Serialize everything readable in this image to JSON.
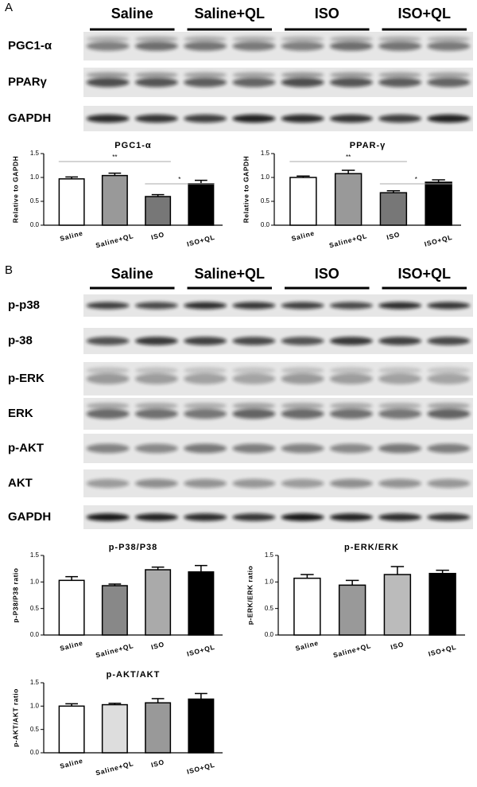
{
  "panel_a": {
    "label": "A",
    "groups": [
      "Saline",
      "Saline+QL",
      "ISO",
      "ISO+QL"
    ],
    "blots": [
      "PGC1-α",
      "PPARγ",
      "GAPDH"
    ]
  },
  "panel_b": {
    "label": "B",
    "groups": [
      "Saline",
      "Saline+QL",
      "ISO",
      "ISO+QL"
    ],
    "blots": [
      "p-p38",
      "p-38",
      "p-ERK",
      "ERK",
      "p-AKT",
      "AKT",
      "GAPDH"
    ]
  },
  "chart_data": [
    {
      "type": "bar",
      "title": "PGC1-α",
      "ylabel": "Relative to GAPDH",
      "categories": [
        "Saline",
        "Saline+QL",
        "ISO",
        "ISO+QL"
      ],
      "values": [
        0.97,
        1.04,
        0.6,
        0.87
      ],
      "errors": [
        0.04,
        0.05,
        0.04,
        0.07
      ],
      "colors": [
        "#ffffff",
        "#999999",
        "#777777",
        "#000000"
      ],
      "ylim": [
        0,
        1.5
      ],
      "yticks": [
        {
          "value": 0,
          "label": "0.0"
        },
        {
          "value": 0.5,
          "label": "0.5"
        },
        {
          "value": 1,
          "label": "1.0"
        },
        {
          "value": 1.5,
          "label": "1.5"
        }
      ],
      "significance": [
        {
          "label": "**",
          "groups": [
            0,
            2
          ]
        },
        {
          "label": "*",
          "groups": [
            2,
            3
          ]
        }
      ]
    },
    {
      "type": "bar",
      "title": "PPAR-γ",
      "ylabel": "Relative to GAPDH",
      "categories": [
        "Saline",
        "Saline+QL",
        "ISO",
        "ISO+QL"
      ],
      "values": [
        1.0,
        1.08,
        0.68,
        0.9
      ],
      "errors": [
        0.03,
        0.07,
        0.04,
        0.05
      ],
      "colors": [
        "#ffffff",
        "#999999",
        "#777777",
        "#000000"
      ],
      "ylim": [
        0,
        1.5
      ],
      "yticks": [
        {
          "value": 0,
          "label": "0.0"
        },
        {
          "value": 0.5,
          "label": "0.5"
        },
        {
          "value": 1,
          "label": "1.0"
        },
        {
          "value": 1.5,
          "label": "1.5"
        }
      ],
      "significance": [
        {
          "label": "**",
          "groups": [
            0,
            2
          ]
        },
        {
          "label": "*",
          "groups": [
            2,
            3
          ]
        }
      ]
    },
    {
      "type": "bar",
      "title": "p-P38/P38",
      "ylabel": "p-P38/P38 ratio",
      "categories": [
        "Saline",
        "Saline+QL",
        "ISO",
        "ISO+QL"
      ],
      "values": [
        1.03,
        0.93,
        1.23,
        1.19
      ],
      "errors": [
        0.07,
        0.03,
        0.05,
        0.12
      ],
      "colors": [
        "#ffffff",
        "#888888",
        "#aaaaaa",
        "#000000"
      ],
      "ylim": [
        0,
        1.5
      ],
      "yticks": [
        {
          "value": 0,
          "label": "0.0"
        },
        {
          "value": 0.5,
          "label": "0.5"
        },
        {
          "value": 1,
          "label": "1.0"
        },
        {
          "value": 1.5,
          "label": "1.5"
        }
      ]
    },
    {
      "type": "bar",
      "title": "p-ERK/ERK",
      "ylabel": "p-ERK/ERK ratio",
      "categories": [
        "Saline",
        "Saline+QL",
        "ISO",
        "ISO+QL"
      ],
      "values": [
        1.07,
        0.94,
        1.14,
        1.16
      ],
      "errors": [
        0.07,
        0.09,
        0.15,
        0.06
      ],
      "colors": [
        "#ffffff",
        "#999999",
        "#bbbbbb",
        "#000000"
      ],
      "ylim": [
        0,
        1.5
      ],
      "yticks": [
        {
          "value": 0,
          "label": "0.0"
        },
        {
          "value": 0.5,
          "label": "0.5"
        },
        {
          "value": 1,
          "label": "1.0"
        },
        {
          "value": 1.5,
          "label": "1.5"
        }
      ]
    },
    {
      "type": "bar",
      "title": "p-AKT/AKT",
      "ylabel": "p-AKT/AKT ratio",
      "categories": [
        "Saline",
        "Saline+QL",
        "ISO",
        "ISO+QL"
      ],
      "values": [
        1.0,
        1.03,
        1.07,
        1.15
      ],
      "errors": [
        0.05,
        0.03,
        0.09,
        0.12
      ],
      "colors": [
        "#ffffff",
        "#dddddd",
        "#999999",
        "#000000"
      ],
      "ylim": [
        0,
        1.5
      ],
      "yticks": [
        {
          "value": 0,
          "label": "0.0"
        },
        {
          "value": 0.5,
          "label": "0.5"
        },
        {
          "value": 1,
          "label": "1.0"
        },
        {
          "value": 1.5,
          "label": "1.5"
        }
      ]
    }
  ]
}
